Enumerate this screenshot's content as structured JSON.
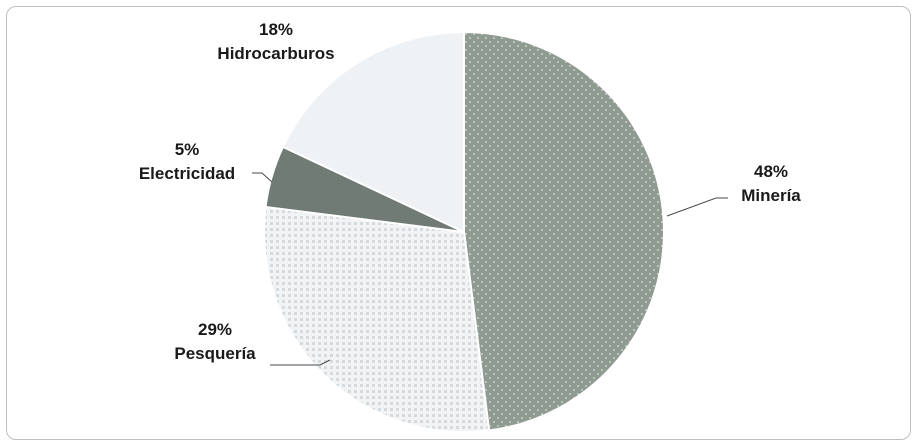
{
  "chart_data": {
    "type": "pie",
    "title": "",
    "slices": [
      {
        "label": "Minería",
        "value": 48,
        "percent_text": "48%",
        "color": "#8f9b91",
        "pattern": "dots"
      },
      {
        "label": "Pesquería",
        "value": 29,
        "percent_text": "29%",
        "color": "#e6e9ec",
        "pattern": "grid"
      },
      {
        "label": "Electricidad",
        "value": 5,
        "percent_text": "5%",
        "color": "#6f7b74",
        "pattern": "none"
      },
      {
        "label": "Hidrocarburos",
        "value": 18,
        "percent_text": "18%",
        "color": "#eef2f5",
        "pattern": "none"
      }
    ],
    "start": "12 o'clock",
    "direction": "clockwise",
    "legend": "none",
    "labels": "outside with leader lines"
  }
}
